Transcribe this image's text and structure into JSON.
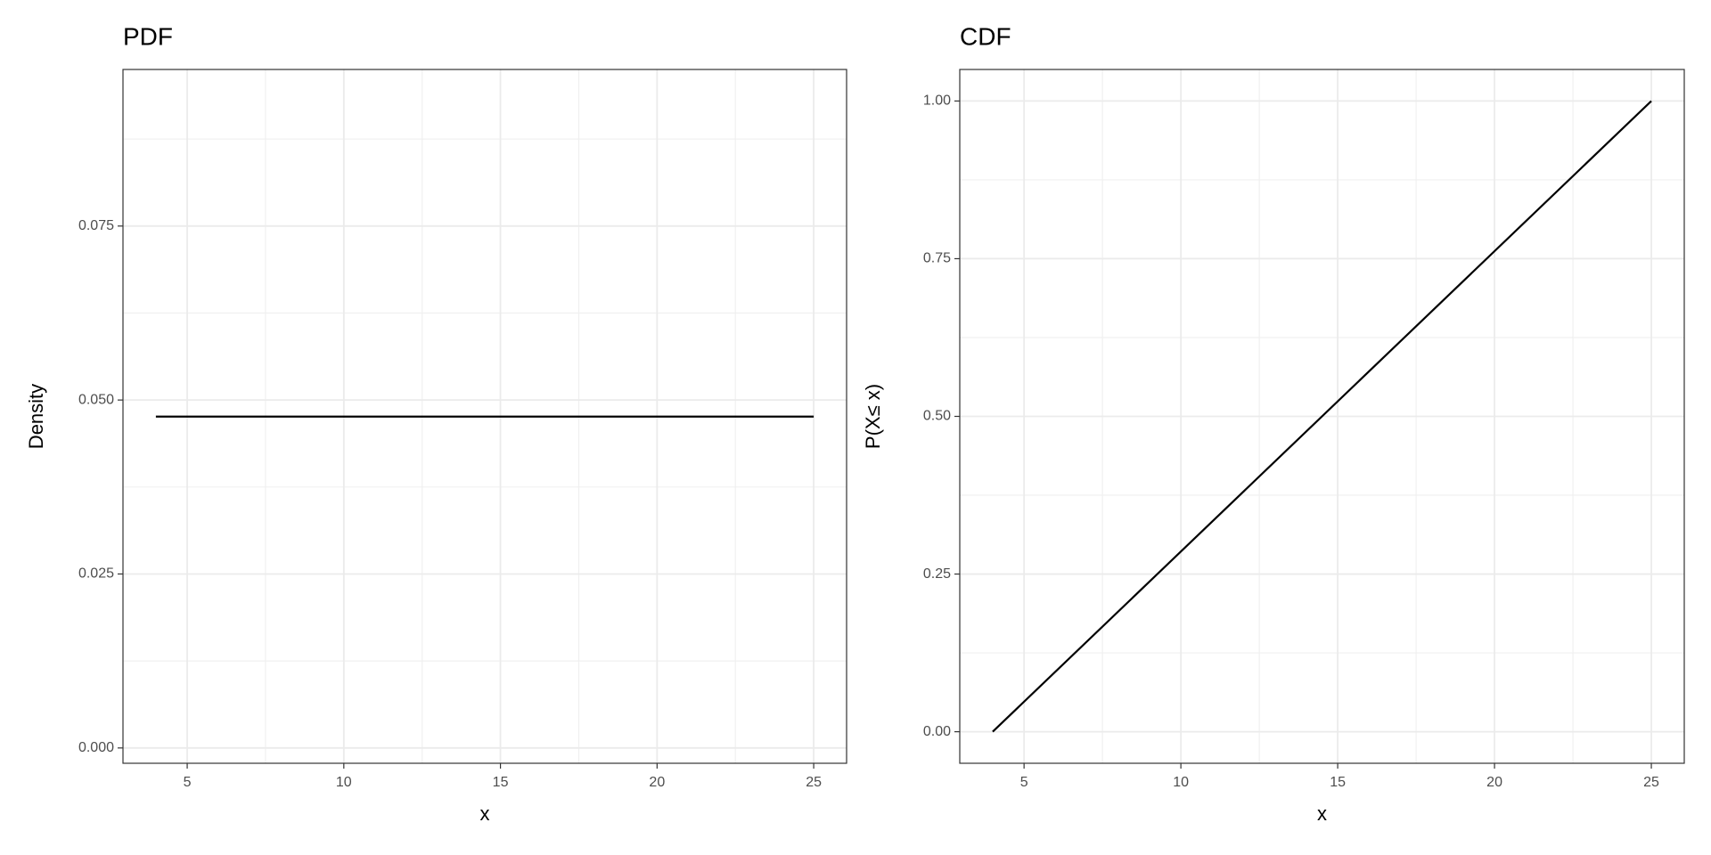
{
  "chart_data": [
    {
      "type": "line",
      "title": "PDF",
      "x_label": "x",
      "y_label": "Density",
      "x": [
        4,
        25
      ],
      "series": [
        {
          "color": "#000000",
          "values": [
            0.047619,
            0.047619
          ]
        }
      ],
      "xlim": [
        2.95,
        26.05
      ],
      "xticks": [
        5,
        10,
        15,
        20,
        25
      ],
      "ylim": [
        -0.0022,
        0.0975
      ],
      "yticks": [
        {
          "value": 0,
          "label": "0.000"
        },
        {
          "value": 0.025,
          "label": "0.025"
        },
        {
          "value": 0.05,
          "label": "0.050"
        },
        {
          "value": 0.075,
          "label": "0.075"
        }
      ],
      "grid": true
    },
    {
      "type": "line",
      "title": "CDF",
      "x_label": "x",
      "y_label": "P(X≤ x)",
      "x": [
        4,
        25
      ],
      "series": [
        {
          "color": "#000000",
          "values": [
            0,
            1
          ]
        }
      ],
      "xlim": [
        2.95,
        26.05
      ],
      "xticks": [
        5,
        10,
        15,
        20,
        25
      ],
      "ylim": [
        -0.05,
        1.05
      ],
      "yticks": [
        {
          "value": 0,
          "label": "0.00"
        },
        {
          "value": 0.25,
          "label": "0.25"
        },
        {
          "value": 0.5,
          "label": "0.50"
        },
        {
          "value": 0.75,
          "label": "0.75"
        },
        {
          "value": 1,
          "label": "1.00"
        }
      ],
      "grid": true
    }
  ]
}
